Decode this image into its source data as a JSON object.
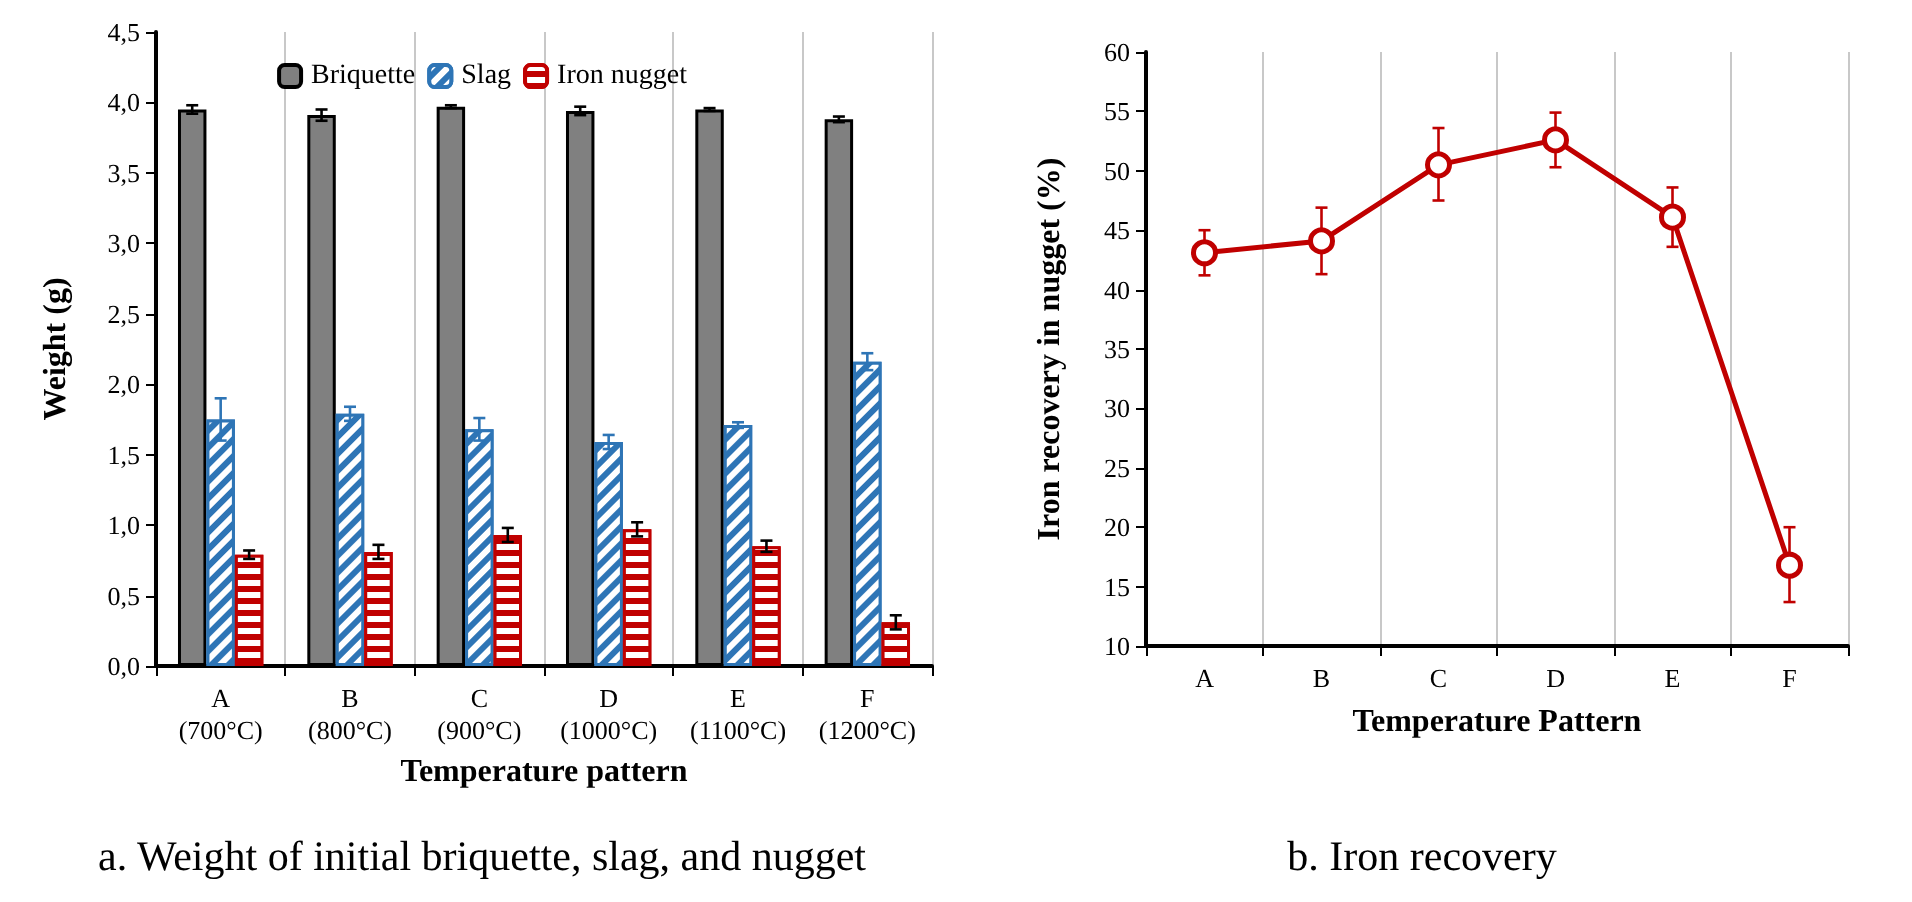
{
  "chart_data": [
    {
      "type": "bar",
      "title": "a. Weight of initial briquette, slag, and nugget",
      "xlabel": "Temperature pattern",
      "ylabel": "Weight (g)",
      "categories": [
        "A\n(700°C)",
        "B\n(800°C)",
        "C\n(900°C)",
        "D\n(1000°C)",
        "E\n(1100°C)",
        "F\n(1200°C)"
      ],
      "series": [
        {
          "name": "Briquette",
          "color": "#808080",
          "values": [
            3.95,
            3.91,
            3.97,
            3.94,
            3.95,
            3.88
          ],
          "errors": [
            0.03,
            0.04,
            0.01,
            0.03,
            0.01,
            0.02
          ]
        },
        {
          "name": "Slag",
          "color": "#2e75b6",
          "values": [
            1.75,
            1.79,
            1.68,
            1.59,
            1.71,
            2.16
          ],
          "errors": [
            0.15,
            0.05,
            0.08,
            0.05,
            0.02,
            0.06
          ]
        },
        {
          "name": "Iron nugget",
          "color": "#c00000",
          "values": [
            0.79,
            0.81,
            0.93,
            0.97,
            0.85,
            0.31
          ],
          "errors": [
            0.03,
            0.05,
            0.05,
            0.05,
            0.04,
            0.05
          ]
        }
      ],
      "ylim": [
        0,
        4.5
      ],
      "yticks": [
        {
          "value": 0,
          "label": "0,0"
        },
        {
          "value": 0.5,
          "label": "0,5"
        },
        {
          "value": 1,
          "label": "1,0"
        },
        {
          "value": 1.5,
          "label": "1,5"
        },
        {
          "value": 2,
          "label": "2,0"
        },
        {
          "value": 2.5,
          "label": "2,5"
        },
        {
          "value": 3,
          "label": "3,0"
        },
        {
          "value": 3.5,
          "label": "3,5"
        },
        {
          "value": 4,
          "label": "4,0"
        },
        {
          "value": 4.5,
          "label": "4,5"
        }
      ],
      "grid": "x",
      "legend": "top"
    },
    {
      "type": "line",
      "title": "b. Iron recovery",
      "xlabel": "Temperature Pattern",
      "ylabel": "Iron recovery in nugget (%)",
      "categories": [
        "A",
        "B",
        "C",
        "D",
        "E",
        "F"
      ],
      "series": [
        {
          "color": "#c00000",
          "values": [
            43.1,
            44.1,
            50.5,
            52.6,
            46.1,
            16.8
          ],
          "errors": [
            [
              41.2,
              45
            ],
            [
              41.3,
              46.9
            ],
            [
              47.5,
              53.6
            ],
            [
              50.3,
              54.9
            ],
            [
              43.6,
              48.6
            ],
            [
              13.7,
              20
            ]
          ]
        }
      ],
      "ylim": [
        10,
        60
      ],
      "yticks": [
        10,
        15,
        20,
        25,
        30,
        35,
        40,
        45,
        50,
        55,
        60
      ],
      "grid": "x",
      "legend": false,
      "marker": "circle",
      "line_style": "solid"
    }
  ]
}
